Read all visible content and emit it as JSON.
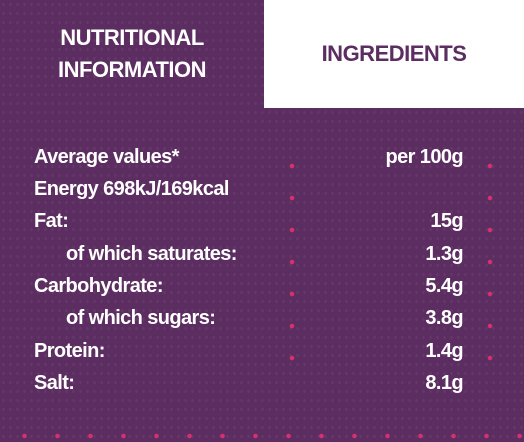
{
  "tabs": {
    "active": "NUTRITIONAL INFORMATION",
    "inactive": "INGREDIENTS"
  },
  "table": {
    "header": {
      "label": "Average values*",
      "value": "per 100g"
    },
    "rows": [
      {
        "label": "Energy 698kJ/169kcal"
      },
      {
        "label": "Fat:",
        "value": "15g"
      },
      {
        "label": "of which saturates:",
        "value": "1.3g",
        "indent": true
      },
      {
        "label": "Carbohydrate:",
        "value": "5.4g"
      },
      {
        "label": "of which sugars:",
        "value": "3.8g",
        "indent": true
      },
      {
        "label": "Protein:",
        "value": "1.4g"
      },
      {
        "label": "Salt:",
        "value": "8.1g"
      }
    ]
  }
}
